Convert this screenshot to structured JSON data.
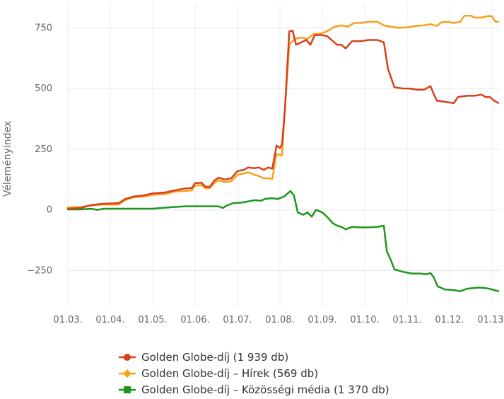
{
  "chart_data": {
    "type": "line",
    "ylabel": "Véleményindex",
    "xlabel": "",
    "title": "",
    "ylim": [
      -400,
      850
    ],
    "yticks": [
      750,
      500,
      250,
      0,
      -250
    ],
    "x_tick_labels": [
      "01.03.",
      "01.04.",
      "01.05.",
      "01.06.",
      "01.07.",
      "01.08.",
      "01.09.",
      "01.10.",
      "01.11.",
      "01.12.",
      "01.13."
    ],
    "grid": true,
    "legend_position": "bottom",
    "series": [
      {
        "name": "Golden Globe-díj (1 939 db)",
        "color": "#d9401a",
        "marker": "circle",
        "points": [
          [
            3.0,
            5
          ],
          [
            3.3,
            8
          ],
          [
            3.55,
            20
          ],
          [
            3.8,
            25
          ],
          [
            4.2,
            28
          ],
          [
            4.35,
            45
          ],
          [
            4.55,
            55
          ],
          [
            4.8,
            60
          ],
          [
            5.0,
            68
          ],
          [
            5.3,
            72
          ],
          [
            5.5,
            80
          ],
          [
            5.75,
            88
          ],
          [
            5.92,
            90
          ],
          [
            6.0,
            110
          ],
          [
            6.15,
            112
          ],
          [
            6.25,
            95
          ],
          [
            6.35,
            95
          ],
          [
            6.45,
            120
          ],
          [
            6.55,
            133
          ],
          [
            6.7,
            125
          ],
          [
            6.85,
            130
          ],
          [
            7.0,
            160
          ],
          [
            7.15,
            165
          ],
          [
            7.25,
            175
          ],
          [
            7.4,
            172
          ],
          [
            7.5,
            175
          ],
          [
            7.62,
            165
          ],
          [
            7.72,
            175
          ],
          [
            7.82,
            170
          ],
          [
            7.92,
            265
          ],
          [
            8.0,
            255
          ],
          [
            8.05,
            270
          ],
          [
            8.12,
            420
          ],
          [
            8.22,
            735
          ],
          [
            8.3,
            738
          ],
          [
            8.38,
            680
          ],
          [
            8.5,
            690
          ],
          [
            8.62,
            700
          ],
          [
            8.72,
            680
          ],
          [
            8.82,
            720
          ],
          [
            9.0,
            720
          ],
          [
            9.12,
            715
          ],
          [
            9.25,
            695
          ],
          [
            9.35,
            680
          ],
          [
            9.45,
            680
          ],
          [
            9.55,
            665
          ],
          [
            9.7,
            695
          ],
          [
            9.9,
            695
          ],
          [
            10.1,
            700
          ],
          [
            10.3,
            700
          ],
          [
            10.45,
            690
          ],
          [
            10.55,
            580
          ],
          [
            10.7,
            505
          ],
          [
            10.9,
            500
          ],
          [
            11.05,
            500
          ],
          [
            11.25,
            495
          ],
          [
            11.4,
            495
          ],
          [
            11.55,
            510
          ],
          [
            11.62,
            480
          ],
          [
            11.7,
            450
          ],
          [
            11.9,
            445
          ],
          [
            12.1,
            440
          ],
          [
            12.2,
            465
          ],
          [
            12.4,
            470
          ],
          [
            12.6,
            470
          ],
          [
            12.75,
            475
          ],
          [
            12.85,
            465
          ],
          [
            12.95,
            465
          ],
          [
            13.05,
            450
          ],
          [
            13.15,
            440
          ]
        ]
      },
      {
        "name": "Golden Globe-díj – Hírek (569 db)",
        "color": "#f5a21b",
        "marker": "diamond",
        "points": [
          [
            3.0,
            10
          ],
          [
            3.3,
            12
          ],
          [
            3.55,
            18
          ],
          [
            3.8,
            22
          ],
          [
            4.2,
            22
          ],
          [
            4.35,
            40
          ],
          [
            4.55,
            52
          ],
          [
            4.8,
            55
          ],
          [
            5.0,
            62
          ],
          [
            5.3,
            65
          ],
          [
            5.5,
            75
          ],
          [
            5.75,
            78
          ],
          [
            5.92,
            80
          ],
          [
            6.0,
            100
          ],
          [
            6.15,
            102
          ],
          [
            6.25,
            88
          ],
          [
            6.35,
            90
          ],
          [
            6.45,
            110
          ],
          [
            6.55,
            122
          ],
          [
            6.7,
            115
          ],
          [
            6.85,
            118
          ],
          [
            7.0,
            145
          ],
          [
            7.15,
            150
          ],
          [
            7.25,
            155
          ],
          [
            7.4,
            145
          ],
          [
            7.5,
            140
          ],
          [
            7.62,
            130
          ],
          [
            7.72,
            130
          ],
          [
            7.82,
            128
          ],
          [
            7.92,
            230
          ],
          [
            8.0,
            225
          ],
          [
            8.05,
            225
          ],
          [
            8.12,
            420
          ],
          [
            8.22,
            680
          ],
          [
            8.35,
            705
          ],
          [
            8.5,
            710
          ],
          [
            8.65,
            705
          ],
          [
            8.8,
            725
          ],
          [
            8.95,
            725
          ],
          [
            9.1,
            735
          ],
          [
            9.3,
            755
          ],
          [
            9.45,
            760
          ],
          [
            9.6,
            755
          ],
          [
            9.75,
            770
          ],
          [
            9.9,
            770
          ],
          [
            10.1,
            775
          ],
          [
            10.3,
            775
          ],
          [
            10.45,
            760
          ],
          [
            10.6,
            755
          ],
          [
            10.8,
            750
          ],
          [
            11.0,
            752
          ],
          [
            11.2,
            758
          ],
          [
            11.4,
            760
          ],
          [
            11.55,
            765
          ],
          [
            11.7,
            758
          ],
          [
            11.8,
            772
          ],
          [
            11.95,
            775
          ],
          [
            12.1,
            770
          ],
          [
            12.25,
            775
          ],
          [
            12.35,
            800
          ],
          [
            12.5,
            800
          ],
          [
            12.6,
            792
          ],
          [
            12.75,
            792
          ],
          [
            12.9,
            798
          ],
          [
            13.0,
            798
          ],
          [
            13.08,
            775
          ],
          [
            13.15,
            775
          ]
        ]
      },
      {
        "name": "Golden Globe-díj – Közösségi média (1 370 db)",
        "color": "#1e961e",
        "marker": "square",
        "points": [
          [
            3.0,
            2
          ],
          [
            3.3,
            2
          ],
          [
            3.55,
            5
          ],
          [
            3.7,
            0
          ],
          [
            3.85,
            5
          ],
          [
            4.2,
            5
          ],
          [
            4.5,
            5
          ],
          [
            4.8,
            5
          ],
          [
            5.0,
            5
          ],
          [
            5.2,
            8
          ],
          [
            5.5,
            12
          ],
          [
            5.8,
            15
          ],
          [
            6.2,
            15
          ],
          [
            6.4,
            15
          ],
          [
            6.55,
            15
          ],
          [
            6.65,
            8
          ],
          [
            6.75,
            18
          ],
          [
            6.9,
            28
          ],
          [
            7.1,
            30
          ],
          [
            7.25,
            35
          ],
          [
            7.4,
            40
          ],
          [
            7.55,
            38
          ],
          [
            7.65,
            45
          ],
          [
            7.8,
            48
          ],
          [
            7.95,
            45
          ],
          [
            8.1,
            55
          ],
          [
            8.25,
            78
          ],
          [
            8.33,
            60
          ],
          [
            8.42,
            -10
          ],
          [
            8.55,
            -20
          ],
          [
            8.65,
            -10
          ],
          [
            8.75,
            -28
          ],
          [
            8.85,
            0
          ],
          [
            9.0,
            -10
          ],
          [
            9.12,
            -30
          ],
          [
            9.25,
            -55
          ],
          [
            9.35,
            -65
          ],
          [
            9.45,
            -70
          ],
          [
            9.55,
            -80
          ],
          [
            9.7,
            -70
          ],
          [
            9.9,
            -72
          ],
          [
            10.1,
            -72
          ],
          [
            10.3,
            -70
          ],
          [
            10.45,
            -65
          ],
          [
            10.52,
            -170
          ],
          [
            10.6,
            -200
          ],
          [
            10.7,
            -245
          ],
          [
            10.8,
            -250
          ],
          [
            10.9,
            -255
          ],
          [
            11.1,
            -262
          ],
          [
            11.3,
            -262
          ],
          [
            11.45,
            -265
          ],
          [
            11.55,
            -260
          ],
          [
            11.62,
            -275
          ],
          [
            11.72,
            -315
          ],
          [
            11.9,
            -328
          ],
          [
            12.1,
            -330
          ],
          [
            12.25,
            -335
          ],
          [
            12.4,
            -325
          ],
          [
            12.55,
            -322
          ],
          [
            12.7,
            -320
          ],
          [
            12.85,
            -322
          ],
          [
            12.95,
            -325
          ],
          [
            13.05,
            -330
          ],
          [
            13.15,
            -335
          ]
        ]
      }
    ]
  }
}
